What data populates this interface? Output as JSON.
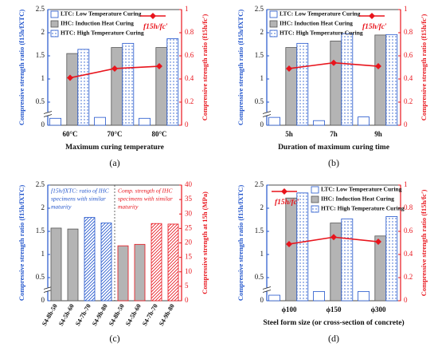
{
  "chart_data": [
    {
      "type": "bar",
      "caption": "(a)",
      "xlabel": "Maximum curing temperature",
      "ylabel": "Compressive strength ratio (f15h/fXTC)",
      "y2label": "Compressive strength ratio (f15h/fc′)",
      "categories": [
        "60°C",
        "70°C",
        "80°C"
      ],
      "ylim": [
        0,
        2.5
      ],
      "yticks": [
        0,
        0.5,
        1,
        1.5,
        2,
        2.5
      ],
      "y2lim": [
        0,
        1
      ],
      "y2ticks": [
        0,
        0.2,
        0.4,
        0.6,
        0.8,
        1
      ],
      "y_color": "#2255cc",
      "y2_color": "#e8141c",
      "axis_break": true,
      "legend": "upper left",
      "line_legend": "upper right",
      "series": [
        {
          "name": "LTC: Low Temperature Curing",
          "color": "#2255cc",
          "fill": "white",
          "values": [
            0.15,
            0.17,
            0.15
          ]
        },
        {
          "name": "IHC: Induction Heat Curing",
          "color": "#555555",
          "fill": "gray",
          "values": [
            1.55,
            1.68,
            1.68
          ]
        },
        {
          "name": "HTC: High Temperature Curing",
          "color": "#2255cc",
          "fill": "dots",
          "values": [
            1.64,
            1.77,
            1.87
          ]
        },
        {
          "name": "f15h/fc′",
          "color": "#e8141c",
          "type": "line",
          "axis": "y2",
          "values": [
            0.41,
            0.49,
            0.51
          ]
        }
      ]
    },
    {
      "type": "bar",
      "caption": "(b)",
      "xlabel": "Duration of maximum curing time",
      "ylabel": "Compressive strength ratio (f15h/fXTC)",
      "y2label": "Compressive strength ratio (f15h/fc′)",
      "categories": [
        "5h",
        "7h",
        "9h"
      ],
      "ylim": [
        0,
        2.5
      ],
      "yticks": [
        0,
        0.5,
        1,
        1.5,
        2,
        2.5
      ],
      "y2lim": [
        0,
        1
      ],
      "y2ticks": [
        0,
        0.2,
        0.4,
        0.6,
        0.8,
        1
      ],
      "y_color": "#2255cc",
      "y2_color": "#e8141c",
      "axis_break": true,
      "legend": "upper left",
      "line_legend": "upper right",
      "series": [
        {
          "name": "LTC: Low Temperature Curing",
          "color": "#2255cc",
          "fill": "white",
          "values": [
            0.17,
            0.1,
            0.18
          ]
        },
        {
          "name": "IHC: Induction Heat Curing",
          "color": "#555555",
          "fill": "gray",
          "values": [
            1.68,
            1.82,
            1.95
          ]
        },
        {
          "name": "HTC: High Temperature Curing",
          "color": "#2255cc",
          "fill": "dots",
          "values": [
            1.77,
            1.98,
            1.96
          ]
        },
        {
          "name": "f15h/fc′",
          "color": "#e8141c",
          "type": "line",
          "axis": "y2",
          "values": [
            0.49,
            0.54,
            0.51
          ]
        }
      ]
    },
    {
      "type": "bar",
      "caption": "(c)",
      "ylabel": "Compressive strength ratio (f15h/fXTC)",
      "y2label": "Compressive strength at 15h (MPa)",
      "categories": [
        "S4-8h-50",
        "S4-5h-60",
        "S4-7h-70",
        "S4-9h-80",
        "S4-8h-50",
        "S4-5h-60",
        "S4-7h-70",
        "S4-9h-80"
      ],
      "xtick_rotation": 60,
      "ylim": [
        0,
        2.5
      ],
      "yticks": [
        0,
        0.5,
        1,
        1.5,
        2,
        2.5
      ],
      "y2lim": [
        0,
        40
      ],
      "y2ticks": [
        0,
        5,
        10,
        15,
        20,
        25,
        30,
        35,
        40
      ],
      "y_color": "#2255cc",
      "y2_color": "#e8141c",
      "axis_break": true,
      "annotations": [
        [
          "f15h/fXTC: ratio of IHC",
          "specimens with similar",
          "maturity"
        ],
        [
          "Comp. strength of IHC",
          "specimens with similar",
          "maturity"
        ]
      ],
      "series": [
        {
          "color": "#555555",
          "fill": "gray",
          "values": [
            1.57,
            1.55,
            null,
            null,
            null,
            null,
            null,
            null
          ]
        },
        {
          "color": "#2255cc",
          "fill": "hatch",
          "values": [
            null,
            null,
            1.8,
            1.68,
            null,
            null,
            null,
            null
          ]
        },
        {
          "color": "#e8141c",
          "fill": "gray",
          "axis": "y2",
          "values": [
            null,
            null,
            null,
            null,
            19,
            19.5,
            null,
            null
          ]
        },
        {
          "color": "#e8141c",
          "fill": "hatch",
          "axis": "y2",
          "values": [
            null,
            null,
            null,
            null,
            null,
            null,
            26.7,
            26.5
          ]
        }
      ]
    },
    {
      "type": "bar",
      "caption": "(d)",
      "xlabel": "Steel form size (or cross-section of concrete)",
      "ylabel": "Compressive strength ratio (f15h/fXTC)",
      "y2label": "Compressive strength ratio (f15h/fc′)",
      "categories": [
        "ϕ100",
        "ϕ150",
        "ϕ300"
      ],
      "ylim": [
        0,
        2.5
      ],
      "yticks": [
        0,
        0.5,
        1,
        1.5,
        2,
        2.5
      ],
      "y2lim": [
        0,
        1
      ],
      "y2ticks": [
        0,
        0.2,
        0.4,
        0.6,
        0.8,
        1
      ],
      "y_color": "#2255cc",
      "y2_color": "#e8141c",
      "axis_break": true,
      "legend": "upper right",
      "line_legend": "upper left",
      "series": [
        {
          "name": "LTC: Low Temperature Curing",
          "color": "#2255cc",
          "fill": "white",
          "values": [
            0.12,
            0.2,
            0.2
          ]
        },
        {
          "name": "IHC: Induction Heat Curing",
          "color": "#555555",
          "fill": "gray",
          "values": [
            2.22,
            1.68,
            1.4
          ]
        },
        {
          "name": "HTC: High Temperature Curing",
          "color": "#2255cc",
          "fill": "dots",
          "values": [
            2.33,
            1.77,
            1.82
          ]
        },
        {
          "name": "f15h/fc′",
          "color": "#e8141c",
          "type": "line",
          "axis": "y2",
          "values": [
            0.49,
            0.55,
            0.51
          ]
        }
      ]
    }
  ]
}
